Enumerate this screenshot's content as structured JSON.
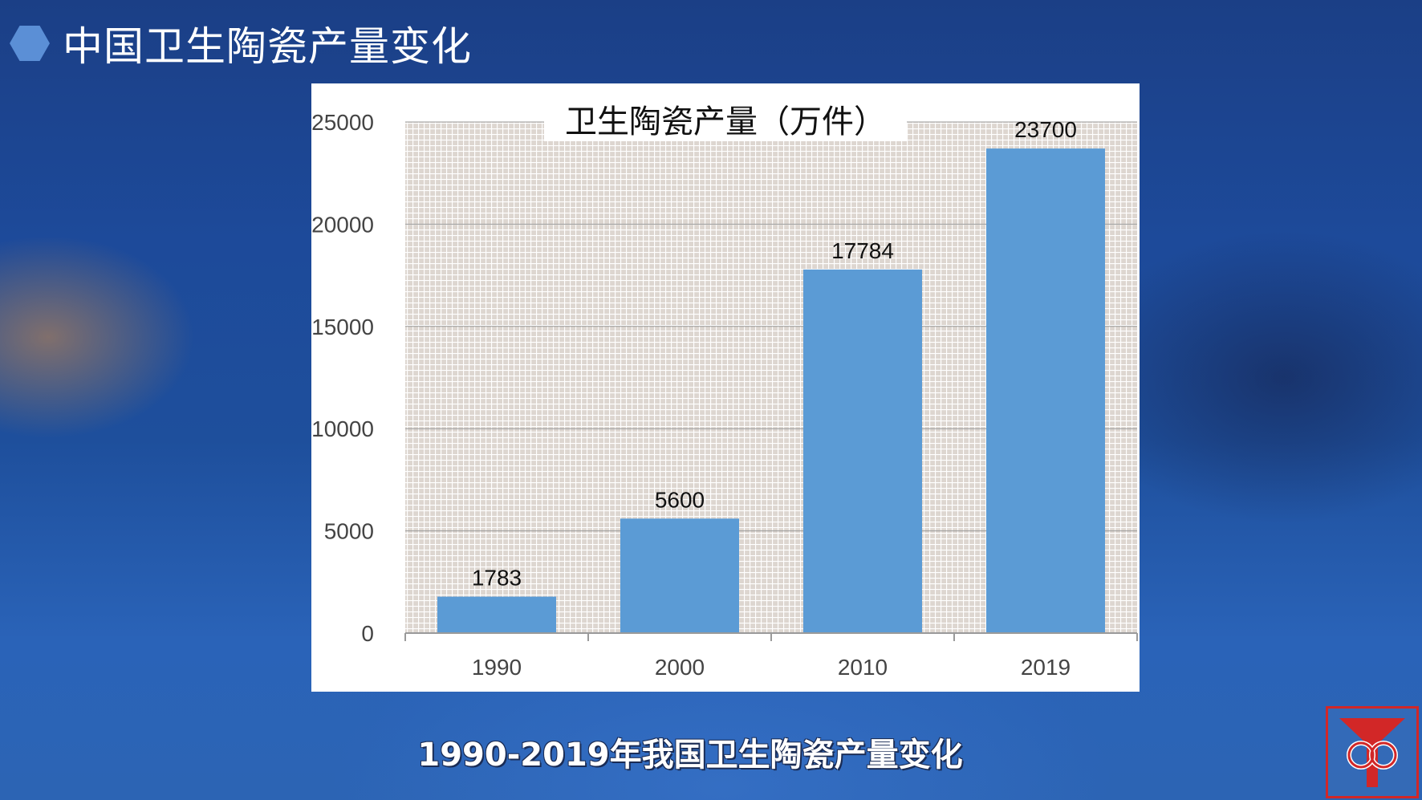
{
  "slide": {
    "title": "中国卫生陶瓷产量变化",
    "caption": "1990-2019年我国卫生陶瓷产量变化"
  },
  "colors": {
    "bar": "#5b9bd5",
    "hexagon": "#5b8fd6",
    "logo": "#d22727"
  },
  "chart_data": {
    "type": "bar",
    "title": "卫生陶瓷产量（万件）",
    "categories": [
      "1990",
      "2000",
      "2010",
      "2019"
    ],
    "values": [
      1783,
      5600,
      17784,
      23700
    ],
    "data_labels": [
      "1783",
      "5600",
      "17784",
      "23700"
    ],
    "ylim": [
      0,
      25000
    ],
    "yticks": [
      0,
      5000,
      10000,
      15000,
      20000,
      25000
    ],
    "grid": true,
    "legend": "none"
  }
}
